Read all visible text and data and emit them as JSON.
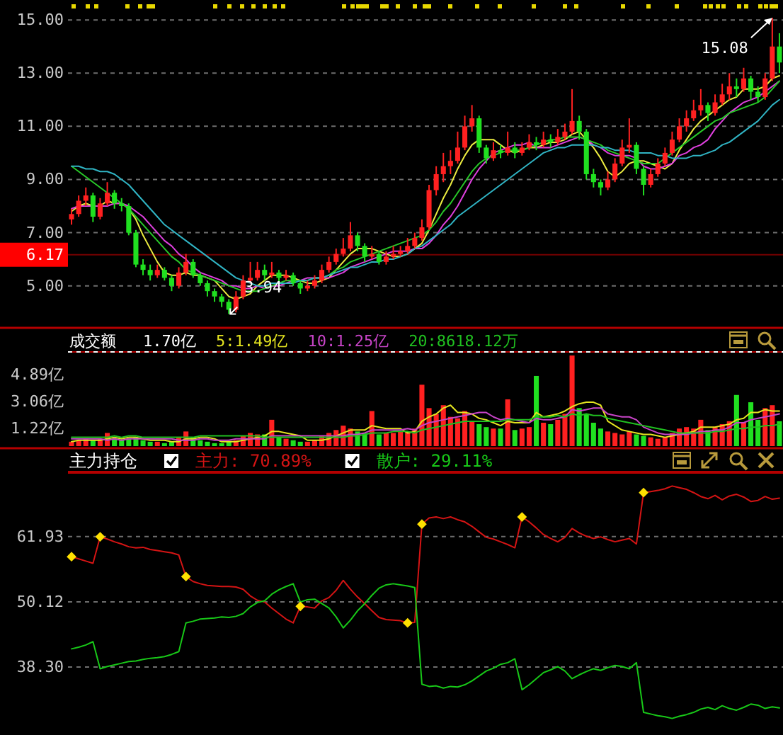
{
  "chart_data": [
    {
      "type": "candlestick",
      "categories": [
        null,
        null,
        null,
        null,
        null,
        null,
        null,
        null,
        null,
        null,
        null,
        null,
        null,
        null,
        null,
        null,
        null,
        null,
        null,
        null,
        null,
        null,
        null,
        null,
        null,
        null,
        null,
        null,
        null,
        null,
        null,
        null,
        null,
        null,
        null,
        null,
        null,
        null,
        null,
        null,
        null,
        null,
        null,
        null,
        null,
        null,
        null,
        null,
        null,
        null,
        null,
        null,
        null,
        null,
        null,
        null,
        null,
        null,
        null,
        null,
        null,
        null,
        null,
        null,
        null,
        null,
        null,
        null,
        null,
        null,
        null,
        null,
        null,
        null,
        null,
        null,
        null,
        null,
        null,
        null,
        null,
        null,
        null,
        null,
        null,
        null,
        null,
        null,
        null,
        null,
        null,
        null,
        null,
        null,
        null,
        null,
        null,
        null,
        null,
        null
      ],
      "ohlc": [
        [
          7.5,
          7.9,
          7.3,
          7.7
        ],
        [
          7.7,
          8.4,
          7.6,
          8.2
        ],
        [
          8.2,
          8.7,
          8.0,
          8.4
        ],
        [
          8.4,
          8.5,
          7.4,
          7.6
        ],
        [
          7.6,
          8.3,
          7.5,
          8.1
        ],
        [
          8.1,
          8.9,
          8.0,
          8.5
        ],
        [
          8.5,
          8.6,
          7.9,
          8.1
        ],
        [
          8.1,
          8.3,
          7.8,
          8.0
        ],
        [
          8.0,
          8.1,
          6.9,
          7.0
        ],
        [
          7.0,
          7.1,
          5.7,
          5.8
        ],
        [
          5.8,
          6.0,
          5.4,
          5.6
        ],
        [
          5.6,
          5.8,
          5.2,
          5.4
        ],
        [
          5.4,
          5.8,
          5.3,
          5.6
        ],
        [
          5.6,
          5.7,
          5.2,
          5.3
        ],
        [
          5.3,
          5.4,
          4.8,
          5.0
        ],
        [
          5.0,
          5.7,
          4.9,
          5.5
        ],
        [
          5.5,
          6.2,
          5.4,
          5.9
        ],
        [
          5.9,
          6.0,
          5.3,
          5.4
        ],
        [
          5.4,
          5.5,
          5.0,
          5.1
        ],
        [
          5.1,
          5.2,
          4.6,
          4.8
        ],
        [
          4.8,
          4.9,
          4.4,
          4.6
        ],
        [
          4.6,
          4.7,
          4.2,
          4.4
        ],
        [
          4.4,
          4.5,
          3.94,
          4.1
        ],
        [
          4.1,
          4.8,
          4.0,
          4.6
        ],
        [
          4.6,
          5.4,
          4.5,
          5.2
        ],
        [
          5.2,
          5.9,
          5.1,
          5.3
        ],
        [
          5.3,
          5.9,
          5.2,
          5.6
        ],
        [
          5.6,
          5.8,
          5.2,
          5.4
        ],
        [
          5.4,
          5.9,
          5.3,
          5.5
        ],
        [
          5.5,
          5.6,
          5.1,
          5.3
        ],
        [
          5.3,
          5.6,
          5.2,
          5.4
        ],
        [
          5.4,
          5.5,
          5.0,
          5.1
        ],
        [
          5.1,
          5.2,
          4.7,
          4.9
        ],
        [
          4.9,
          5.2,
          4.8,
          5.0
        ],
        [
          5.0,
          5.4,
          4.9,
          5.2
        ],
        [
          5.2,
          5.8,
          5.1,
          5.6
        ],
        [
          5.6,
          6.1,
          5.5,
          5.9
        ],
        [
          5.9,
          6.4,
          5.8,
          6.2
        ],
        [
          6.2,
          6.8,
          6.1,
          6.4
        ],
        [
          6.4,
          7.4,
          6.3,
          6.9
        ],
        [
          6.9,
          7.0,
          6.3,
          6.5
        ],
        [
          6.5,
          6.6,
          5.9,
          6.1
        ],
        [
          6.1,
          6.5,
          6.0,
          6.2
        ],
        [
          6.2,
          6.3,
          5.8,
          5.9
        ],
        [
          5.9,
          6.3,
          5.8,
          6.1
        ],
        [
          6.1,
          6.5,
          6.0,
          6.2
        ],
        [
          6.2,
          6.5,
          6.1,
          6.3
        ],
        [
          6.3,
          6.8,
          6.2,
          6.5
        ],
        [
          6.5,
          7.0,
          6.4,
          6.8
        ],
        [
          6.8,
          7.5,
          6.7,
          7.2
        ],
        [
          7.2,
          8.8,
          7.1,
          8.6
        ],
        [
          8.6,
          9.5,
          8.4,
          9.2
        ],
        [
          9.2,
          10.0,
          8.9,
          9.5
        ],
        [
          9.5,
          10.1,
          9.2,
          9.7
        ],
        [
          9.7,
          10.8,
          9.6,
          10.2
        ],
        [
          10.2,
          11.4,
          10.1,
          11.0
        ],
        [
          11.0,
          11.8,
          10.8,
          11.3
        ],
        [
          11.3,
          11.4,
          10.0,
          10.2
        ],
        [
          10.2,
          10.3,
          9.6,
          9.8
        ],
        [
          9.8,
          10.4,
          9.7,
          10.1
        ],
        [
          10.1,
          10.3,
          9.8,
          10.0
        ],
        [
          10.0,
          10.8,
          9.9,
          10.2
        ],
        [
          10.2,
          10.4,
          9.8,
          10.0
        ],
        [
          10.0,
          10.4,
          9.9,
          10.2
        ],
        [
          10.2,
          10.7,
          10.1,
          10.4
        ],
        [
          10.4,
          10.6,
          10.1,
          10.3
        ],
        [
          10.3,
          10.8,
          10.2,
          10.5
        ],
        [
          10.5,
          10.7,
          10.2,
          10.4
        ],
        [
          10.4,
          10.9,
          10.3,
          10.6
        ],
        [
          10.6,
          11.1,
          10.5,
          10.8
        ],
        [
          10.8,
          12.4,
          10.7,
          11.2
        ],
        [
          11.2,
          11.4,
          10.5,
          10.8
        ],
        [
          10.8,
          10.9,
          9.0,
          9.2
        ],
        [
          9.2,
          9.4,
          8.7,
          8.9
        ],
        [
          8.9,
          9.0,
          8.4,
          8.7
        ],
        [
          8.7,
          9.3,
          8.6,
          9.0
        ],
        [
          9.0,
          9.8,
          8.9,
          9.6
        ],
        [
          9.6,
          10.5,
          9.5,
          10.2
        ],
        [
          10.2,
          11.3,
          10.0,
          10.3
        ],
        [
          10.3,
          10.4,
          9.2,
          9.4
        ],
        [
          9.4,
          9.5,
          8.4,
          8.8
        ],
        [
          8.8,
          9.4,
          8.7,
          9.2
        ],
        [
          9.2,
          9.8,
          9.1,
          9.6
        ],
        [
          9.6,
          10.2,
          9.5,
          10.0
        ],
        [
          10.0,
          10.8,
          9.9,
          10.5
        ],
        [
          10.5,
          11.3,
          10.4,
          11.0
        ],
        [
          11.0,
          11.6,
          10.8,
          11.3
        ],
        [
          11.3,
          12.0,
          11.2,
          11.6
        ],
        [
          11.6,
          12.4,
          11.4,
          11.8
        ],
        [
          11.8,
          11.9,
          11.2,
          11.5
        ],
        [
          11.5,
          12.2,
          11.4,
          11.9
        ],
        [
          11.9,
          12.6,
          11.8,
          12.2
        ],
        [
          12.2,
          13.0,
          12.0,
          12.5
        ],
        [
          12.5,
          12.8,
          12.1,
          12.4
        ],
        [
          12.4,
          13.2,
          12.3,
          12.8
        ],
        [
          12.8,
          12.9,
          12.0,
          12.3
        ],
        [
          12.3,
          12.5,
          11.9,
          12.1
        ],
        [
          12.1,
          13.0,
          12.0,
          12.8
        ],
        [
          12.8,
          15.08,
          12.7,
          14.0
        ],
        [
          14.0,
          14.5,
          13.0,
          13.4
        ]
      ],
      "colors": [
        "#ff2020",
        "#ff2020",
        "#ff2020",
        "#20e020",
        "#ff2020",
        "#ff2020",
        "#20e020",
        "#20e020",
        "#20e020",
        "#20e020",
        "#20e020",
        "#20e020",
        "#ff2020",
        "#20e020",
        "#20e020",
        "#ff2020",
        "#ff2020",
        "#20e020",
        "#20e020",
        "#20e020",
        "#20e020",
        "#20e020",
        "#20e020",
        "#ff2020",
        "#ff2020",
        "#ff2020",
        "#ff2020",
        "#20e020",
        "#ff2020",
        "#20e020",
        "#ff2020",
        "#20e020",
        "#20e020",
        "#ff2020",
        "#ff2020",
        "#ff2020",
        "#ff2020",
        "#ff2020",
        "#ff2020",
        "#ff2020",
        "#20e020",
        "#20e020",
        "#ff2020",
        "#20e020",
        "#ff2020",
        "#ff2020",
        "#ff2020",
        "#ff2020",
        "#ff2020",
        "#ff2020",
        "#ff2020",
        "#ff2020",
        "#ff2020",
        "#ff2020",
        "#ff2020",
        "#ff2020",
        "#ff2020",
        "#20e020",
        "#20e020",
        "#ff2020",
        "#20e020",
        "#ff2020",
        "#20e020",
        "#ff2020",
        "#ff2020",
        "#20e020",
        "#ff2020",
        "#20e020",
        "#ff2020",
        "#ff2020",
        "#ff2020",
        "#20e020",
        "#20e020",
        "#20e020",
        "#20e020",
        "#ff2020",
        "#ff2020",
        "#ff2020",
        "#ff2020",
        "#20e020",
        "#20e020",
        "#ff2020",
        "#ff2020",
        "#ff2020",
        "#ff2020",
        "#ff2020",
        "#ff2020",
        "#ff2020",
        "#ff2020",
        "#20e020",
        "#ff2020",
        "#ff2020",
        "#ff2020",
        "#20e020",
        "#ff2020",
        "#20e020",
        "#20e020",
        "#ff2020",
        "#ff2020",
        "#20e020"
      ],
      "series": [
        {
          "type": "line",
          "color": "#ecec40",
          "values": [
            7.8,
            8.0,
            8.1,
            8.0,
            8.0,
            8.2,
            8.1,
            8.1,
            7.9,
            7.5,
            6.9,
            6.4,
            5.9,
            5.5,
            5.4,
            5.4,
            5.5,
            5.4,
            5.4,
            5.3,
            5.2,
            4.9,
            4.6,
            4.5,
            4.6,
            4.7,
            5.0,
            5.2,
            5.4,
            5.4,
            5.4,
            5.3,
            5.2,
            5.1,
            5.1,
            5.2,
            5.3,
            5.6,
            5.9,
            6.2,
            6.4,
            6.4,
            6.4,
            6.3,
            6.2,
            6.1,
            6.1,
            6.2,
            6.4,
            6.6,
            7.1,
            7.7,
            8.3,
            8.8,
            9.4,
            9.9,
            10.3,
            10.5,
            10.5,
            10.5,
            10.3,
            10.1,
            10.0,
            10.1,
            10.2,
            10.2,
            10.3,
            10.4,
            10.4,
            10.5,
            10.7,
            10.8,
            10.5,
            10.2,
            9.8,
            9.3,
            9.1,
            9.3,
            9.6,
            9.7,
            9.7,
            9.6,
            9.5,
            9.4,
            9.6,
            10.1,
            10.5,
            10.9,
            11.2,
            11.4,
            11.6,
            11.8,
            12.0,
            12.1,
            12.4,
            12.4,
            12.4,
            12.5,
            12.8,
            12.9
          ]
        },
        {
          "type": "line",
          "color": "#e040e0",
          "values": [
            7.9,
            8.0,
            8.0,
            8.0,
            8.0,
            8.0,
            8.1,
            8.1,
            8.0,
            7.8,
            7.6,
            7.3,
            7.0,
            6.7,
            6.5,
            6.2,
            6.0,
            5.7,
            5.5,
            5.4,
            5.3,
            5.2,
            5.0,
            5.0,
            4.9,
            4.9,
            5.0,
            4.9,
            5.0,
            5.0,
            5.1,
            5.2,
            5.2,
            5.3,
            5.3,
            5.3,
            5.3,
            5.4,
            5.5,
            5.7,
            5.8,
            5.9,
            6.0,
            6.1,
            6.2,
            6.3,
            6.3,
            6.3,
            6.4,
            6.4,
            6.6,
            6.9,
            7.3,
            7.6,
            8.0,
            8.5,
            9.0,
            9.4,
            9.7,
            10.0,
            10.1,
            10.2,
            10.3,
            10.3,
            10.4,
            10.2,
            10.2,
            10.2,
            10.3,
            10.4,
            10.5,
            10.6,
            10.5,
            10.3,
            10.2,
            10.0,
            9.9,
            9.9,
            9.9,
            9.8,
            9.5,
            9.4,
            9.4,
            9.5,
            9.6,
            9.9,
            10.0,
            10.2,
            10.3,
            10.5,
            10.9,
            11.2,
            11.5,
            11.7,
            11.9,
            12.0,
            12.1,
            12.3,
            12.5,
            12.7
          ]
        },
        {
          "type": "line",
          "color": "#28c828",
          "values": [
            9.5,
            9.3,
            9.1,
            8.9,
            8.7,
            8.5,
            8.3,
            8.1,
            7.9,
            7.6,
            7.3,
            7.0,
            6.7,
            6.4,
            6.1,
            5.9,
            5.6,
            5.5,
            5.4,
            5.3,
            5.2,
            5.1,
            5.0,
            4.9,
            4.8,
            4.8,
            4.8,
            4.9,
            5.0,
            5.1,
            5.2,
            5.2,
            5.2,
            5.2,
            5.3,
            5.3,
            5.4,
            5.6,
            5.7,
            5.9,
            6.0,
            6.1,
            6.2,
            6.3,
            6.4,
            6.5,
            6.6,
            6.7,
            6.8,
            6.9,
            7.1,
            7.4,
            7.8,
            8.1,
            8.5,
            8.9,
            9.3,
            9.6,
            9.8,
            9.9,
            10.0,
            10.1,
            10.1,
            10.1,
            10.2,
            10.3,
            10.4,
            10.5,
            10.5,
            10.6,
            10.6,
            10.6,
            10.5,
            10.4,
            10.3,
            10.1,
            10.0,
            9.9,
            9.8,
            9.7,
            9.6,
            9.6,
            9.6,
            9.8,
            10.0,
            10.2,
            10.4,
            10.6,
            10.8,
            11.0,
            11.2,
            11.3,
            11.5,
            11.6,
            11.7,
            11.8,
            11.9,
            12.1,
            12.4,
            12.7
          ]
        },
        {
          "type": "line",
          "color": "#30b4c4",
          "values": [
            9.5,
            9.5,
            9.4,
            9.4,
            9.3,
            9.3,
            9.2,
            9.0,
            8.8,
            8.5,
            8.2,
            7.9,
            7.6,
            7.3,
            7.1,
            6.9,
            6.7,
            6.5,
            6.3,
            6.1,
            5.9,
            5.7,
            5.5,
            5.3,
            5.2,
            5.1,
            5.0,
            5.0,
            5.1,
            5.1,
            5.1,
            5.1,
            5.2,
            5.2,
            5.3,
            5.3,
            5.4,
            5.5,
            5.6,
            5.7,
            5.7,
            5.8,
            5.9,
            5.9,
            6.0,
            6.0,
            6.1,
            6.2,
            6.4,
            6.5,
            6.7,
            6.9,
            7.1,
            7.3,
            7.6,
            7.8,
            8.0,
            8.2,
            8.4,
            8.6,
            8.8,
            9.0,
            9.2,
            9.4,
            9.6,
            9.8,
            10.0,
            10.1,
            10.2,
            10.2,
            10.3,
            10.3,
            10.3,
            10.3,
            10.2,
            10.2,
            10.1,
            10.1,
            10.1,
            10.0,
            10.0,
            10.0,
            9.9,
            9.9,
            9.8,
            9.8,
            9.8,
            9.9,
            9.9,
            10.0,
            10.1,
            10.3,
            10.4,
            10.6,
            10.8,
            11.0,
            11.2,
            11.5,
            11.8,
            12.0
          ]
        }
      ],
      "ylim": [
        3.5,
        15.75
      ],
      "yticks": [
        {
          "value": 5,
          "label": "5.00"
        },
        {
          "value": 7,
          "label": "7.00"
        },
        {
          "value": 9,
          "label": "9.00"
        },
        {
          "value": 11,
          "label": "11.00"
        },
        {
          "value": 13,
          "label": "13.00"
        },
        {
          "value": 15,
          "label": "15.00"
        }
      ],
      "grid": "y",
      "tick_labels": "y",
      "ref_lines": [
        {
          "axis": "y",
          "value": 6.17,
          "label": "6.17",
          "color": "#ff0000"
        }
      ],
      "annotations": [
        "15.08",
        "3.94"
      ]
    },
    {
      "type": "bar",
      "title": "成交额",
      "subtitle": "1.70亿",
      "categories": [
        null,
        null,
        null,
        null,
        null,
        null,
        null,
        null,
        null,
        null,
        null,
        null,
        null,
        null,
        null,
        null,
        null,
        null,
        null,
        null,
        null,
        null,
        null,
        null,
        null,
        null,
        null,
        null,
        null,
        null,
        null,
        null,
        null,
        null,
        null,
        null,
        null,
        null,
        null,
        null,
        null,
        null,
        null,
        null,
        null,
        null,
        null,
        null,
        null,
        null,
        null,
        null,
        null,
        null,
        null,
        null,
        null,
        null,
        null,
        null,
        null,
        null,
        null,
        null,
        null,
        null,
        null,
        null,
        null,
        null,
        null,
        null,
        null,
        null,
        null,
        null,
        null,
        null,
        null,
        null,
        null,
        null,
        null,
        null,
        null,
        null,
        null,
        null,
        null,
        null,
        null,
        null,
        null,
        null,
        null,
        null,
        null,
        null,
        null,
        null
      ],
      "series": [
        {
          "values": [
            0.3,
            0.4,
            0.5,
            0.4,
            0.5,
            0.9,
            0.5,
            0.4,
            0.5,
            0.6,
            0.4,
            0.3,
            0.3,
            0.2,
            0.3,
            0.6,
            1.0,
            0.6,
            0.4,
            0.3,
            0.2,
            0.2,
            0.3,
            0.4,
            0.7,
            0.9,
            0.8,
            0.8,
            1.8,
            0.6,
            0.5,
            0.4,
            0.3,
            0.3,
            0.4,
            0.7,
            0.9,
            1.1,
            1.4,
            1.2,
            1.0,
            0.9,
            2.4,
            0.8,
            0.9,
            0.9,
            1.0,
            1.0,
            1.2,
            4.2,
            2.6,
            2.2,
            2.8,
            2.0,
            1.9,
            2.4,
            1.7,
            1.5,
            1.3,
            1.2,
            1.2,
            3.2,
            1.1,
            1.2,
            1.3,
            4.8,
            1.6,
            1.5,
            1.8,
            2.2,
            6.2,
            2.6,
            2.2,
            1.6,
            1.2,
            1.0,
            0.9,
            0.8,
            1.0,
            0.8,
            0.7,
            0.6,
            0.5,
            0.6,
            0.9,
            1.2,
            1.3,
            1.2,
            1.8,
            1.1,
            1.3,
            1.5,
            1.7,
            3.5,
            1.6,
            3.0,
            1.8,
            2.6,
            2.8,
            1.7
          ],
          "colors": [
            "#ff2020",
            "#ff2020",
            "#ff2020",
            "#20e020",
            "#ff2020",
            "#ff2020",
            "#20e020",
            "#20e020",
            "#20e020",
            "#20e020",
            "#20e020",
            "#20e020",
            "#ff2020",
            "#20e020",
            "#20e020",
            "#ff2020",
            "#ff2020",
            "#20e020",
            "#20e020",
            "#20e020",
            "#20e020",
            "#20e020",
            "#20e020",
            "#ff2020",
            "#ff2020",
            "#ff2020",
            "#ff2020",
            "#20e020",
            "#ff2020",
            "#20e020",
            "#ff2020",
            "#20e020",
            "#20e020",
            "#ff2020",
            "#ff2020",
            "#ff2020",
            "#ff2020",
            "#ff2020",
            "#ff2020",
            "#ff2020",
            "#20e020",
            "#20e020",
            "#ff2020",
            "#20e020",
            "#ff2020",
            "#ff2020",
            "#ff2020",
            "#ff2020",
            "#ff2020",
            "#ff2020",
            "#ff2020",
            "#ff2020",
            "#ff2020",
            "#ff2020",
            "#ff2020",
            "#ff2020",
            "#ff2020",
            "#20e020",
            "#20e020",
            "#ff2020",
            "#20e020",
            "#ff2020",
            "#20e020",
            "#ff2020",
            "#ff2020",
            "#20e020",
            "#ff2020",
            "#20e020",
            "#ff2020",
            "#ff2020",
            "#ff2020",
            "#20e020",
            "#20e020",
            "#20e020",
            "#20e020",
            "#ff2020",
            "#ff2020",
            "#ff2020",
            "#ff2020",
            "#20e020",
            "#20e020",
            "#ff2020",
            "#ff2020",
            "#ff2020",
            "#ff2020",
            "#ff2020",
            "#ff2020",
            "#ff2020",
            "#ff2020",
            "#20e020",
            "#ff2020",
            "#ff2020",
            "#ff2020",
            "#20e020",
            "#ff2020",
            "#20e020",
            "#20e020",
            "#ff2020",
            "#ff2020",
            "#20e020"
          ]
        },
        {
          "type": "line",
          "name": "5:1.49亿",
          "color": "#e4e420",
          "values": [
            0.3,
            0.4,
            0.4,
            0.4,
            0.4,
            0.5,
            0.6,
            0.5,
            0.6,
            0.6,
            0.5,
            0.4,
            0.4,
            0.4,
            0.3,
            0.3,
            0.5,
            0.5,
            0.6,
            0.6,
            0.5,
            0.3,
            0.3,
            0.3,
            0.4,
            0.5,
            0.6,
            0.7,
            1.0,
            1.0,
            0.9,
            0.8,
            0.7,
            0.4,
            0.4,
            0.4,
            0.5,
            0.7,
            0.9,
            1.1,
            1.1,
            1.1,
            1.4,
            1.3,
            1.2,
            1.2,
            1.2,
            0.9,
            1.0,
            1.7,
            2.0,
            2.2,
            2.6,
            2.8,
            2.3,
            2.3,
            2.2,
            1.9,
            1.8,
            1.6,
            1.4,
            1.7,
            1.6,
            1.6,
            1.6,
            2.3,
            2.0,
            2.1,
            2.2,
            2.4,
            2.7,
            2.9,
            3.0,
            3.0,
            2.8,
            1.7,
            1.4,
            1.1,
            1.0,
            0.9,
            0.8,
            0.8,
            0.7,
            0.6,
            0.7,
            0.8,
            0.9,
            1.0,
            1.3,
            1.3,
            1.3,
            1.4,
            1.5,
            1.8,
            1.9,
            2.3,
            2.3,
            2.5,
            2.4,
            2.4
          ]
        },
        {
          "type": "line",
          "name": "10:1.25亿",
          "color": "#c844c8",
          "values": [
            0.5,
            0.5,
            0.5,
            0.5,
            0.5,
            0.4,
            0.5,
            0.4,
            0.5,
            0.5,
            0.5,
            0.5,
            0.5,
            0.5,
            0.5,
            0.4,
            0.4,
            0.4,
            0.5,
            0.5,
            0.4,
            0.4,
            0.4,
            0.5,
            0.5,
            0.5,
            0.5,
            0.5,
            0.7,
            0.7,
            0.7,
            0.7,
            0.7,
            0.7,
            0.7,
            0.7,
            0.7,
            0.7,
            0.7,
            0.8,
            0.8,
            0.9,
            1.1,
            1.1,
            1.1,
            1.1,
            1.1,
            1.2,
            1.1,
            1.4,
            1.6,
            1.7,
            1.8,
            1.9,
            2.0,
            2.1,
            2.2,
            2.3,
            2.3,
            2.0,
            1.8,
            1.9,
            1.8,
            1.7,
            1.6,
            1.9,
            1.8,
            1.8,
            1.9,
            2.0,
            2.5,
            2.4,
            2.5,
            2.6,
            2.6,
            2.2,
            2.1,
            2.0,
            2.0,
            1.8,
            1.3,
            1.1,
            0.9,
            0.8,
            0.8,
            0.8,
            0.8,
            0.9,
            1.0,
            1.0,
            1.1,
            1.1,
            1.3,
            1.6,
            1.6,
            1.8,
            1.9,
            2.0,
            2.1,
            2.2
          ]
        },
        {
          "type": "line",
          "name": "20:8618.12万",
          "color": "#20c020",
          "values": [
            0.6,
            0.6,
            0.6,
            0.6,
            0.6,
            0.6,
            0.7,
            0.6,
            0.7,
            0.7,
            0.6,
            0.6,
            0.6,
            0.6,
            0.6,
            0.6,
            0.6,
            0.6,
            0.7,
            0.7,
            0.7,
            0.7,
            0.7,
            0.7,
            0.7,
            0.7,
            0.7,
            0.6,
            0.6,
            0.6,
            0.6,
            0.6,
            0.6,
            0.6,
            0.6,
            0.6,
            0.6,
            0.6,
            0.6,
            0.7,
            0.7,
            0.8,
            0.9,
            0.9,
            0.9,
            1.0,
            1.0,
            1.0,
            0.9,
            1.1,
            1.2,
            1.3,
            1.4,
            1.5,
            1.6,
            1.7,
            1.7,
            1.7,
            1.7,
            1.7,
            1.7,
            1.8,
            1.8,
            1.8,
            1.8,
            2.0,
            2.0,
            2.0,
            2.1,
            2.0,
            2.2,
            2.1,
            2.2,
            2.1,
            2.1,
            1.9,
            1.8,
            1.7,
            1.6,
            1.5,
            1.4,
            1.3,
            1.2,
            1.1,
            1.0,
            0.9,
            0.9,
            0.9,
            0.9,
            0.9,
            1.0,
            1.0,
            1.1,
            1.2,
            1.2,
            1.3,
            1.3,
            1.4,
            1.4,
            1.5
          ]
        }
      ],
      "ylim": [
        0,
        6.3
      ],
      "yticks": [
        {
          "value": 1.22,
          "label": "1.22亿"
        },
        {
          "value": 3.06,
          "label": "3.06亿"
        },
        {
          "value": 4.89,
          "label": "4.89亿"
        }
      ],
      "tick_labels": "y",
      "legend": "top left"
    },
    {
      "type": "line",
      "title": "主力持仓",
      "categories": [
        null,
        null,
        null,
        null,
        null,
        null,
        null,
        null,
        null,
        null,
        null,
        null,
        null,
        null,
        null,
        null,
        null,
        null,
        null,
        null,
        null,
        null,
        null,
        null,
        null,
        null,
        null,
        null,
        null,
        null,
        null,
        null,
        null,
        null,
        null,
        null,
        null,
        null,
        null,
        null,
        null,
        null,
        null,
        null,
        null,
        null,
        null,
        null,
        null,
        null,
        null,
        null,
        null,
        null,
        null,
        null,
        null,
        null,
        null,
        null,
        null,
        null,
        null,
        null,
        null,
        null,
        null,
        null,
        null,
        null,
        null,
        null,
        null,
        null,
        null,
        null,
        null,
        null,
        null,
        null,
        null,
        null,
        null,
        null,
        null,
        null,
        null,
        null,
        null,
        null,
        null,
        null,
        null,
        null,
        null,
        null,
        null,
        null,
        null,
        null
      ],
      "series": [
        {
          "name": "主力: 70.89%",
          "color": "#d41414",
          "values": [
            58.3,
            57.9,
            57.5,
            57.1,
            61.9,
            61.5,
            61.0,
            60.6,
            60.1,
            59.9,
            60.0,
            59.6,
            59.4,
            59.2,
            59.0,
            58.6,
            54.7,
            53.8,
            53.4,
            53.1,
            53.0,
            52.9,
            52.9,
            52.8,
            52.4,
            51.2,
            50.4,
            50.1,
            49.0,
            48.0,
            47.0,
            46.3,
            49.3,
            49.2,
            49.0,
            50.3,
            50.9,
            52.2,
            54.0,
            52.4,
            51.0,
            49.8,
            48.5,
            47.3,
            46.9,
            46.8,
            46.7,
            46.3,
            46.4,
            64.2,
            65.3,
            65.5,
            65.2,
            65.5,
            65.0,
            64.6,
            63.8,
            62.8,
            61.8,
            61.5,
            61.0,
            60.5,
            59.9,
            65.5,
            64.6,
            63.5,
            62.3,
            61.6,
            61.0,
            61.8,
            63.4,
            62.6,
            62.0,
            61.6,
            61.9,
            61.4,
            61.0,
            61.3,
            61.6,
            60.6,
            69.9,
            70.1,
            70.3,
            70.6,
            71.1,
            70.8,
            70.5,
            69.9,
            69.2,
            68.8,
            69.4,
            68.6,
            69.3,
            69.6,
            69.1,
            68.3,
            68.5,
            69.2,
            68.7,
            68.9
          ]
        },
        {
          "name": "散户: 29.11%",
          "color": "#18c818",
          "values": [
            41.6,
            41.9,
            42.3,
            42.9,
            38.0,
            38.4,
            38.7,
            39.0,
            39.3,
            39.4,
            39.7,
            39.9,
            40.0,
            40.2,
            40.6,
            41.1,
            46.3,
            46.6,
            47.0,
            47.1,
            47.2,
            47.4,
            47.3,
            47.5,
            48.0,
            49.2,
            50.0,
            50.3,
            51.5,
            52.3,
            52.9,
            53.4,
            50.1,
            50.5,
            50.6,
            49.8,
            49.0,
            47.4,
            45.4,
            46.8,
            48.5,
            49.8,
            51.3,
            52.6,
            53.2,
            53.4,
            53.2,
            53.0,
            52.7,
            35.2,
            34.8,
            34.9,
            34.5,
            34.8,
            34.7,
            35.1,
            35.8,
            36.7,
            37.6,
            38.1,
            38.8,
            39.1,
            39.8,
            34.2,
            35.1,
            36.2,
            37.3,
            37.8,
            38.4,
            37.6,
            36.2,
            36.9,
            37.5,
            38.0,
            37.7,
            38.2,
            38.6,
            38.4,
            38.0,
            39.1,
            30.1,
            29.8,
            29.5,
            29.3,
            29.0,
            29.4,
            29.7,
            30.1,
            30.7,
            31.0,
            30.6,
            31.3,
            30.8,
            30.5,
            31.0,
            31.6,
            31.4,
            30.8,
            31.1,
            30.9
          ]
        },
        {
          "type": "scatter",
          "color": "#ffe000",
          "marker": "diamond",
          "values": [
            58.3,
            null,
            null,
            null,
            61.9,
            null,
            null,
            null,
            null,
            null,
            null,
            null,
            null,
            null,
            null,
            null,
            54.7,
            null,
            null,
            null,
            null,
            null,
            null,
            null,
            null,
            null,
            null,
            null,
            null,
            null,
            null,
            null,
            49.3,
            null,
            null,
            null,
            null,
            null,
            null,
            null,
            null,
            null,
            null,
            null,
            null,
            null,
            null,
            46.3,
            null,
            64.2,
            null,
            null,
            null,
            null,
            null,
            null,
            null,
            null,
            null,
            null,
            null,
            null,
            null,
            65.5,
            null,
            null,
            null,
            null,
            null,
            null,
            null,
            null,
            null,
            null,
            null,
            null,
            null,
            null,
            null,
            null,
            69.9,
            null,
            null,
            null,
            null,
            null,
            null,
            null,
            null,
            null,
            null,
            null,
            null,
            null,
            null,
            null,
            null,
            null,
            null,
            null
          ]
        }
      ],
      "ylim": [
        26,
        73.2
      ],
      "yticks": [
        {
          "value": 38.3,
          "label": "38.30"
        },
        {
          "value": 50.12,
          "label": "50.12"
        },
        {
          "value": 61.93,
          "label": "61.93"
        }
      ],
      "grid": "y",
      "tick_labels": "y",
      "legend": "top left"
    }
  ]
}
